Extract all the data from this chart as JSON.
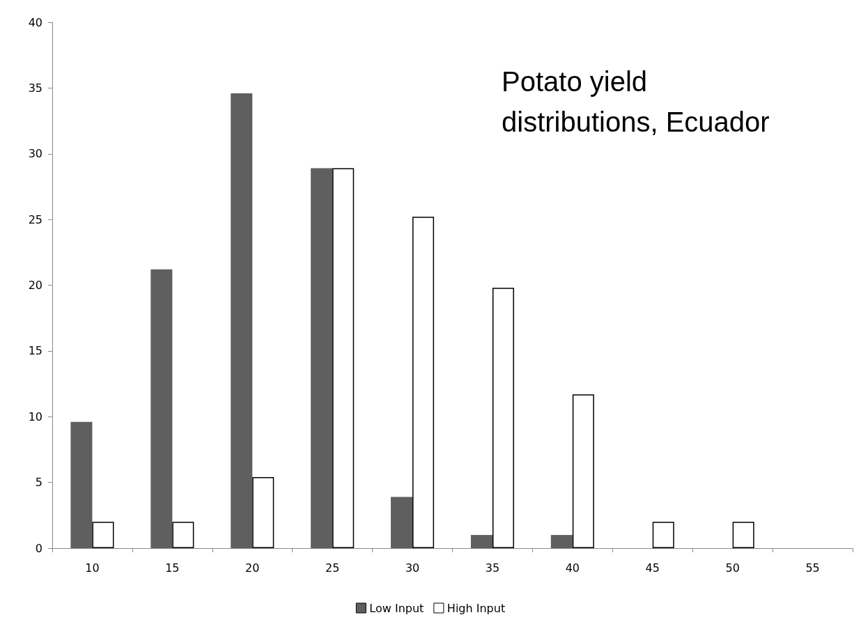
{
  "chart_data": {
    "type": "bar",
    "title": "Potato yield distributions, Ecuador",
    "categories": [
      "10",
      "15",
      "20",
      "25",
      "30",
      "35",
      "40",
      "45",
      "50",
      "55"
    ],
    "series": [
      {
        "name": "Low Input",
        "color": "#5f5f5f",
        "values": [
          9.6,
          21.2,
          34.6,
          28.9,
          3.9,
          1.0,
          1.0,
          null,
          null,
          null
        ]
      },
      {
        "name": "High Input",
        "color": "#ffffff",
        "values": [
          2.0,
          2.0,
          5.4,
          28.9,
          25.2,
          19.8,
          11.7,
          2.0,
          2.0,
          null
        ]
      }
    ],
    "ylim": [
      0,
      40
    ],
    "yticks": [
      0,
      5,
      10,
      15,
      20,
      25,
      30,
      35,
      40
    ],
    "grid": false,
    "legend": "bottom"
  }
}
